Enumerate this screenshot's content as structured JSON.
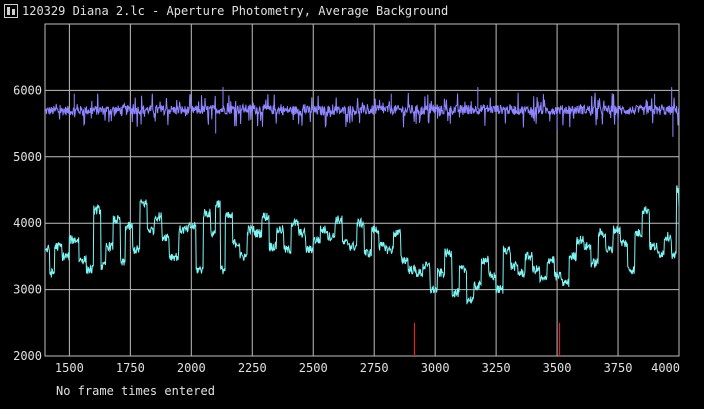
{
  "window": {
    "title": "120329 Diana 2.lc - Aperture Photometry, Average Background",
    "icon": "lightcurve-app-icon"
  },
  "status_text": "No frame times entered",
  "colors": {
    "background": "#000000",
    "grid": "#bfbfbf",
    "axis_text": "#e0e0e0",
    "background_series": "#8f86ff",
    "signal_series": "#7ff5f5",
    "marker": "#e02020"
  },
  "chart_data": {
    "type": "line",
    "title": "",
    "xlabel": "",
    "ylabel": "",
    "xlim": [
      1400,
      4000
    ],
    "ylim": [
      2000,
      7000
    ],
    "x_ticks": [
      1500,
      1750,
      2000,
      2250,
      2500,
      2750,
      3000,
      3250,
      3500,
      3750,
      4000
    ],
    "y_ticks": [
      2000,
      3000,
      4000,
      5000,
      6000
    ],
    "grid": true,
    "series": [
      {
        "color": "#8f86ff",
        "baseline": 5700,
        "noise_amplitude": 120,
        "x": [
          1400,
          1600,
          1800,
          2000,
          2200,
          2400,
          2600,
          2800,
          3000,
          3200,
          3400,
          3600,
          3800,
          4000
        ],
        "y": [
          5690,
          5700,
          5710,
          5700,
          5720,
          5700,
          5690,
          5710,
          5700,
          5720,
          5700,
          5710,
          5700,
          5700
        ],
        "spikes": [
          [
            1520,
            5950
          ],
          [
            2130,
            6050
          ],
          [
            2820,
            5950
          ],
          [
            3175,
            6050
          ],
          [
            3900,
            5950
          ],
          [
            3970,
            6050
          ],
          [
            3975,
            5300
          ],
          [
            2100,
            5350
          ],
          [
            3500,
            5400
          ]
        ]
      },
      {
        "color": "#7ff5f5",
        "x": [
          1400,
          1420,
          1440,
          1470,
          1500,
          1540,
          1570,
          1600,
          1630,
          1650,
          1680,
          1710,
          1730,
          1760,
          1790,
          1820,
          1850,
          1880,
          1910,
          1950,
          1990,
          2020,
          2050,
          2080,
          2100,
          2120,
          2140,
          2170,
          2200,
          2230,
          2260,
          2290,
          2320,
          2350,
          2380,
          2410,
          2440,
          2470,
          2500,
          2530,
          2560,
          2590,
          2620,
          2650,
          2680,
          2710,
          2740,
          2770,
          2800,
          2830,
          2860,
          2890,
          2920,
          2950,
          2980,
          3010,
          3040,
          3070,
          3100,
          3130,
          3160,
          3190,
          3220,
          3250,
          3280,
          3310,
          3340,
          3370,
          3400,
          3430,
          3460,
          3490,
          3520,
          3550,
          3580,
          3610,
          3640,
          3670,
          3700,
          3730,
          3760,
          3790,
          3820,
          3850,
          3880,
          3910,
          3940,
          3970,
          3990,
          4000
        ],
        "y": [
          3600,
          3250,
          3650,
          3500,
          3750,
          3450,
          3300,
          4200,
          3350,
          3650,
          4050,
          3400,
          3950,
          3600,
          4300,
          3900,
          4100,
          3800,
          3500,
          3900,
          3950,
          3300,
          4150,
          3850,
          4300,
          3300,
          4100,
          3700,
          3500,
          3900,
          3850,
          4100,
          3650,
          3900,
          3600,
          4000,
          3850,
          3600,
          3750,
          3900,
          3800,
          4050,
          3700,
          3650,
          4000,
          3550,
          3900,
          3650,
          3600,
          3850,
          3450,
          3300,
          3250,
          3350,
          3000,
          3250,
          3550,
          2950,
          3300,
          2850,
          3050,
          3450,
          3200,
          3000,
          3600,
          3350,
          3250,
          3500,
          3300,
          3150,
          3450,
          3200,
          3100,
          3500,
          3750,
          3650,
          3400,
          3850,
          3600,
          3900,
          3700,
          3300,
          3850,
          4200,
          3650,
          3550,
          3800,
          3500,
          4500,
          4300
        ]
      }
    ],
    "markers": [
      {
        "x": 2915,
        "y_from": 2000,
        "y_to": 2500,
        "color": "#e02020"
      },
      {
        "x": 3510,
        "y_from": 2000,
        "y_to": 2500,
        "color": "#e02020"
      }
    ]
  }
}
